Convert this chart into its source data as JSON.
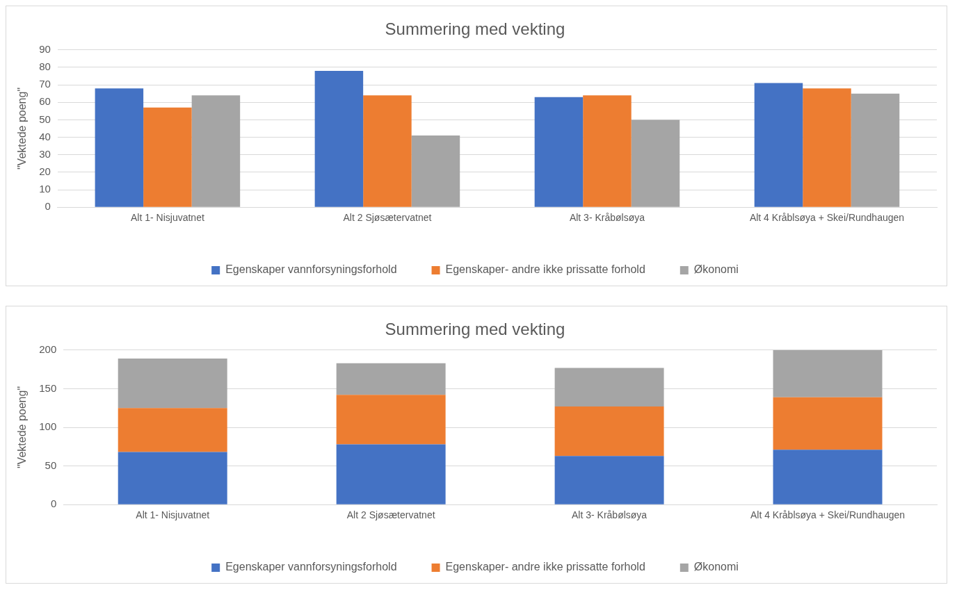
{
  "chart_data": [
    {
      "type": "bar",
      "title": "Summering med vekting",
      "ylabel": "\"Vektede poeng\"",
      "categories": [
        "Alt 1- Nisjuvatnet",
        "Alt 2 Sjøsætervatnet",
        "Alt 3- Kråbølsøya",
        "Alt 4 Kråblsøya + Skei/Rundhaugen"
      ],
      "series": [
        {
          "name": "Egenskaper vannforsyningsforhold",
          "color": "#4472c4",
          "values": [
            68,
            78,
            63,
            71
          ]
        },
        {
          "name": "Egenskaper- andre ikke prissatte forhold",
          "color": "#ed7d31",
          "values": [
            57,
            64,
            64,
            68
          ]
        },
        {
          "name": "Økonomi",
          "color": "#a5a5a5",
          "values": [
            64,
            41,
            50,
            65
          ]
        }
      ],
      "ylim": [
        0,
        90
      ],
      "yticks": [
        0,
        10,
        20,
        30,
        40,
        50,
        60,
        70,
        80,
        90
      ],
      "grid": "y",
      "legend": "bottom"
    },
    {
      "type": "bar",
      "stacked": true,
      "title": "Summering med vekting",
      "ylabel": "\"Vektede poeng\"",
      "categories": [
        "Alt 1- Nisjuvatnet",
        "Alt 2 Sjøsætervatnet",
        "Alt 3- Kråbølsøya",
        "Alt 4 Kråblsøya + Skei/Rundhaugen"
      ],
      "series": [
        {
          "name": "Egenskaper vannforsyningsforhold",
          "color": "#4472c4",
          "values": [
            68,
            78,
            63,
            71
          ]
        },
        {
          "name": "Egenskaper- andre ikke prissatte forhold",
          "color": "#ed7d31",
          "values": [
            57,
            64,
            64,
            68
          ]
        },
        {
          "name": "Økonomi",
          "color": "#a5a5a5",
          "values": [
            64,
            41,
            50,
            61
          ]
        }
      ],
      "ylim": [
        0,
        200
      ],
      "yticks": [
        0,
        50,
        100,
        150,
        200
      ],
      "grid": "y",
      "legend": "bottom"
    }
  ]
}
